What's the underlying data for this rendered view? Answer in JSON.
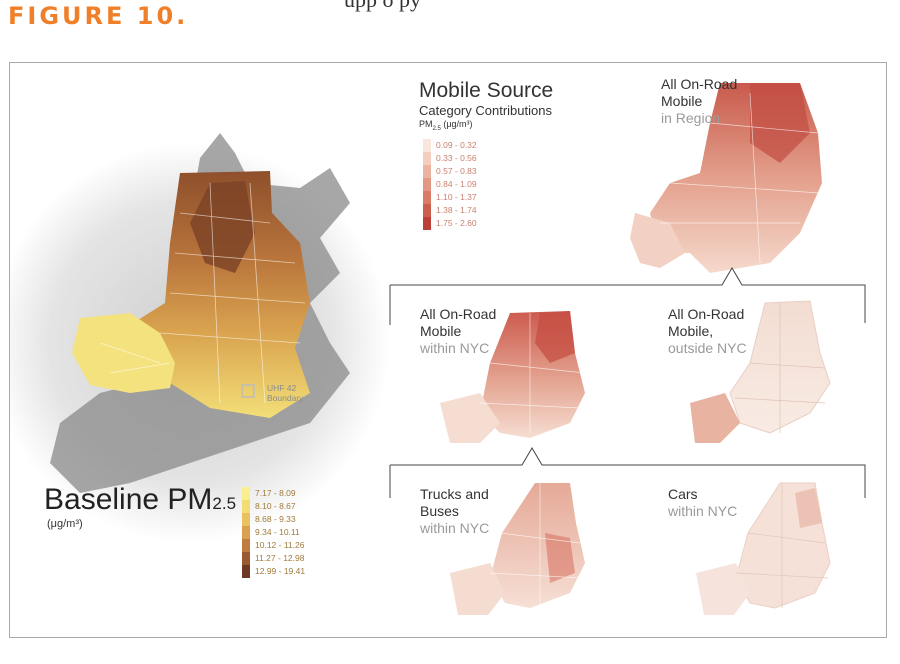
{
  "figure_label": "FIGURE 10.",
  "top_text_fragment": "upp   o   py",
  "baseline": {
    "title": "Baseline PM",
    "title_sub": "2.5",
    "unit": "(μg/m³)",
    "legend": [
      {
        "label": "7.17 - 8.09",
        "color": "#f9ef8f"
      },
      {
        "label": "8.10 - 8.67",
        "color": "#f2dc73"
      },
      {
        "label": "8.68 - 9.33",
        "color": "#e8c262"
      },
      {
        "label": "9.34 - 10.11",
        "color": "#d8a04f"
      },
      {
        "label": "10.12 - 11.26",
        "color": "#bf7c3e"
      },
      {
        "label": "11.27 - 12.98",
        "color": "#9a5a30"
      },
      {
        "label": "12.99 - 19.41",
        "color": "#6e3a22"
      }
    ],
    "boundary_label_1": "UHF 42",
    "boundary_label_2": "Boundary"
  },
  "mobile": {
    "title": "Mobile Source",
    "subtitle": "Category Contributions",
    "unit_main": "PM",
    "unit_sub": "2.5",
    "unit_rest": " (μg/m³)",
    "legend": [
      {
        "label": "0.09 - 0.32",
        "color": "#f8e6dc"
      },
      {
        "label": "0.33 - 0.56",
        "color": "#f3cdbf"
      },
      {
        "label": "0.57 - 0.83",
        "color": "#ecb3a1"
      },
      {
        "label": "0.84 - 1.09",
        "color": "#e39883"
      },
      {
        "label": "1.10 - 1.37",
        "color": "#d97b67"
      },
      {
        "label": "1.38 - 1.74",
        "color": "#cc5e4e"
      },
      {
        "label": "1.75 - 2.60",
        "color": "#bd3f39"
      }
    ]
  },
  "maps": {
    "region": {
      "line1": "All On-Road",
      "line2": "Mobile",
      "line3": "in Region"
    },
    "within_nyc": {
      "line1": "All On-Road",
      "line2": "Mobile",
      "line3": "within NYC"
    },
    "outside_nyc": {
      "line1": "All On-Road",
      "line2": "Mobile,",
      "line3": "outside NYC"
    },
    "trucks": {
      "line1": "Trucks and",
      "line2": "Buses",
      "line3": "within NYC"
    },
    "cars": {
      "line1": "Cars",
      "line2": "within NYC"
    }
  },
  "colors": {
    "accent": "#f07f2a",
    "water": "#8a8a8a",
    "frame": "#a9a9a9"
  }
}
